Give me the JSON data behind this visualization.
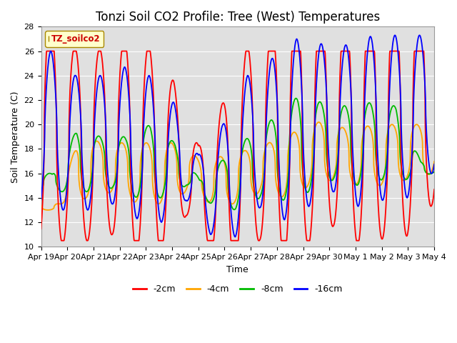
{
  "title": "Tonzi Soil CO2 Profile: Tree (West) Temperatures",
  "xlabel": "Time",
  "ylabel": "Soil Temperature (C)",
  "ylim": [
    10,
    28
  ],
  "yticks": [
    10,
    12,
    14,
    16,
    18,
    20,
    22,
    24,
    26,
    28
  ],
  "legend_label": "TZ_soilco2",
  "series_labels": [
    "-2cm",
    "-4cm",
    "-8cm",
    "-16cm"
  ],
  "series_colors": [
    "#ff0000",
    "#ffa500",
    "#00bb00",
    "#0000ff"
  ],
  "background_color": "#e0e0e0",
  "grid_color": "#ffffff",
  "xtick_labels": [
    "Apr 19",
    "Apr 20",
    "Apr 21",
    "Apr 22",
    "Apr 23",
    "Apr 24",
    "Apr 25",
    "Apr 26",
    "Apr 27",
    "Apr 28",
    "Apr 29",
    "Apr 30",
    "May 1",
    "May 2",
    "May 3",
    "May 4"
  ],
  "n_days": 16,
  "title_fontsize": 12,
  "axis_label_fontsize": 9,
  "tick_fontsize": 8
}
